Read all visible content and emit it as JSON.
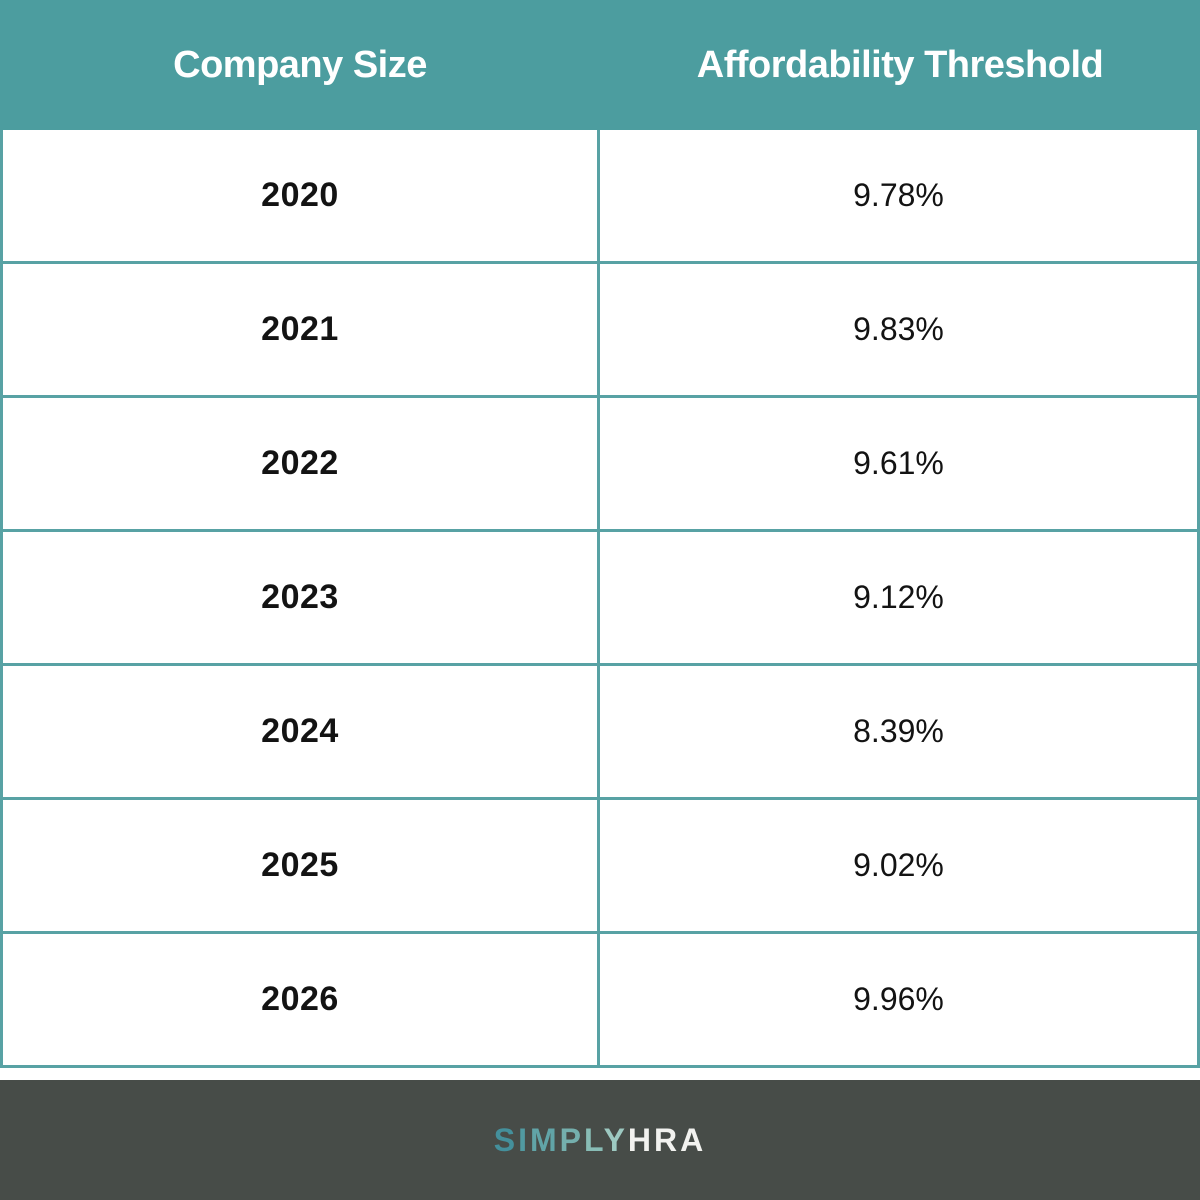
{
  "table": {
    "header": {
      "col1": "Company Size",
      "col2": "Affordability Threshold"
    },
    "rows": [
      {
        "year": "2020",
        "threshold": "9.78%"
      },
      {
        "year": "2021",
        "threshold": "9.83%"
      },
      {
        "year": "2022",
        "threshold": "9.61%"
      },
      {
        "year": "2023",
        "threshold": "9.12%"
      },
      {
        "year": "2024",
        "threshold": "8.39%"
      },
      {
        "year": "2025",
        "threshold": "9.02%"
      },
      {
        "year": "2026",
        "threshold": "9.96%"
      }
    ]
  },
  "chart_data": {
    "type": "table",
    "columns": [
      "Company Size",
      "Affordability Threshold"
    ],
    "rows": [
      [
        "2020",
        "9.78%"
      ],
      [
        "2021",
        "9.83%"
      ],
      [
        "2022",
        "9.61%"
      ],
      [
        "2023",
        "9.12%"
      ],
      [
        "2024",
        "8.39%"
      ],
      [
        "2025",
        "9.02%"
      ],
      [
        "2026",
        "9.96%"
      ]
    ],
    "threshold_values_percent": [
      9.78,
      9.83,
      9.61,
      9.12,
      8.39,
      9.02,
      9.96
    ]
  },
  "footer": {
    "logo_part1": "SIMPLY",
    "logo_part2": "HRA",
    "logo_part1_colors": [
      "#44909c",
      "#519aa1",
      "#61a4a7",
      "#74afad",
      "#88bcb5",
      "#9dc9c1"
    ],
    "logo_part2_color": "#f2f2ef"
  },
  "theme": {
    "header_bg": "#4c9d9f",
    "border_color": "#58a2a4",
    "footer_bg": "#474c48",
    "header_text_color": "#ffffff",
    "body_text_color": "#131313"
  }
}
